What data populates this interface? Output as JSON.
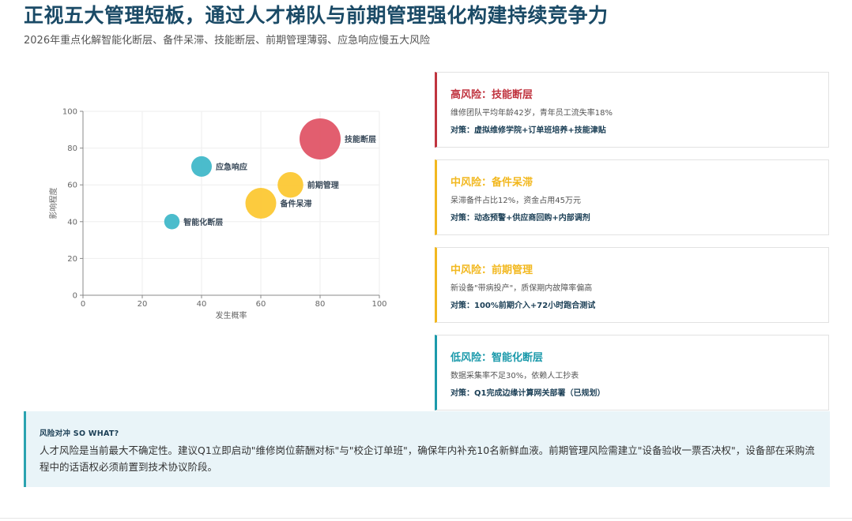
{
  "header": {
    "title": "正视五大管理短板，通过人才梯队与前期管理强化构建持续竞争力",
    "subtitle": "2026年重点化解智能化断层、备件呆滞、技能断层、前期管理薄弱、应急响应慢五大风险"
  },
  "chart_data": {
    "type": "scatter",
    "subtype": "bubble",
    "xlabel": "发生概率",
    "ylabel": "影响程度",
    "xlim": [
      0,
      100
    ],
    "ylim": [
      0,
      100
    ],
    "xticks": [
      "0",
      "20",
      "40",
      "60",
      "80",
      "100"
    ],
    "yticks": [
      "0",
      "20",
      "40",
      "60",
      "80",
      "100"
    ],
    "grid": true,
    "points": [
      {
        "label": "技能断层",
        "x": 80,
        "y": 85,
        "size": 40,
        "color": "#e05063"
      },
      {
        "label": "应急响应",
        "x": 40,
        "y": 70,
        "size": 20,
        "color": "#3cb6c8"
      },
      {
        "label": "前期管理",
        "x": 70,
        "y": 60,
        "size": 25,
        "color": "#fcc72e"
      },
      {
        "label": "备件呆滞",
        "x": 60,
        "y": 50,
        "size": 30,
        "color": "#fcc72e"
      },
      {
        "label": "智能化断层",
        "x": 30,
        "y": 40,
        "size": 15,
        "color": "#3cb6c8"
      }
    ]
  },
  "risks": [
    {
      "title": "高风险：技能断层",
      "desc": "维修团队平均年龄42岁，青年员工流失率18%",
      "measure": "对策：虚拟维修学院+订单班培养+技能津贴",
      "color": "#c0343f"
    },
    {
      "title": "中风险：备件呆滞",
      "desc": "呆滞备件占比12%，资金占用45万元",
      "measure": "对策：动态预警+供应商回购+内部调剂",
      "color": "#f2b81f"
    },
    {
      "title": "中风险：前期管理",
      "desc": "新设备\"带病投产\"，质保期内故障率偏高",
      "measure": "对策：100%前期介入+72小时跑合测试",
      "color": "#f2b81f"
    },
    {
      "title": "低风险：智能化断层",
      "desc": "数据采集率不足30%，依赖人工抄表",
      "measure": "对策：Q1完成边缘计算网关部署（已规划）",
      "color": "#1c9aab"
    }
  ],
  "sowhat": {
    "label": "风险对冲 SO WHAT?",
    "text": "人才风险是当前最大不确定性。建议Q1立即启动\"维修岗位薪酬对标\"与\"校企订单班\"，确保年内补充10名新鲜血液。前期管理风险需建立\"设备验收一票否决权\"，设备部在采购流程中的话语权必须前置到技术协议阶段。"
  }
}
